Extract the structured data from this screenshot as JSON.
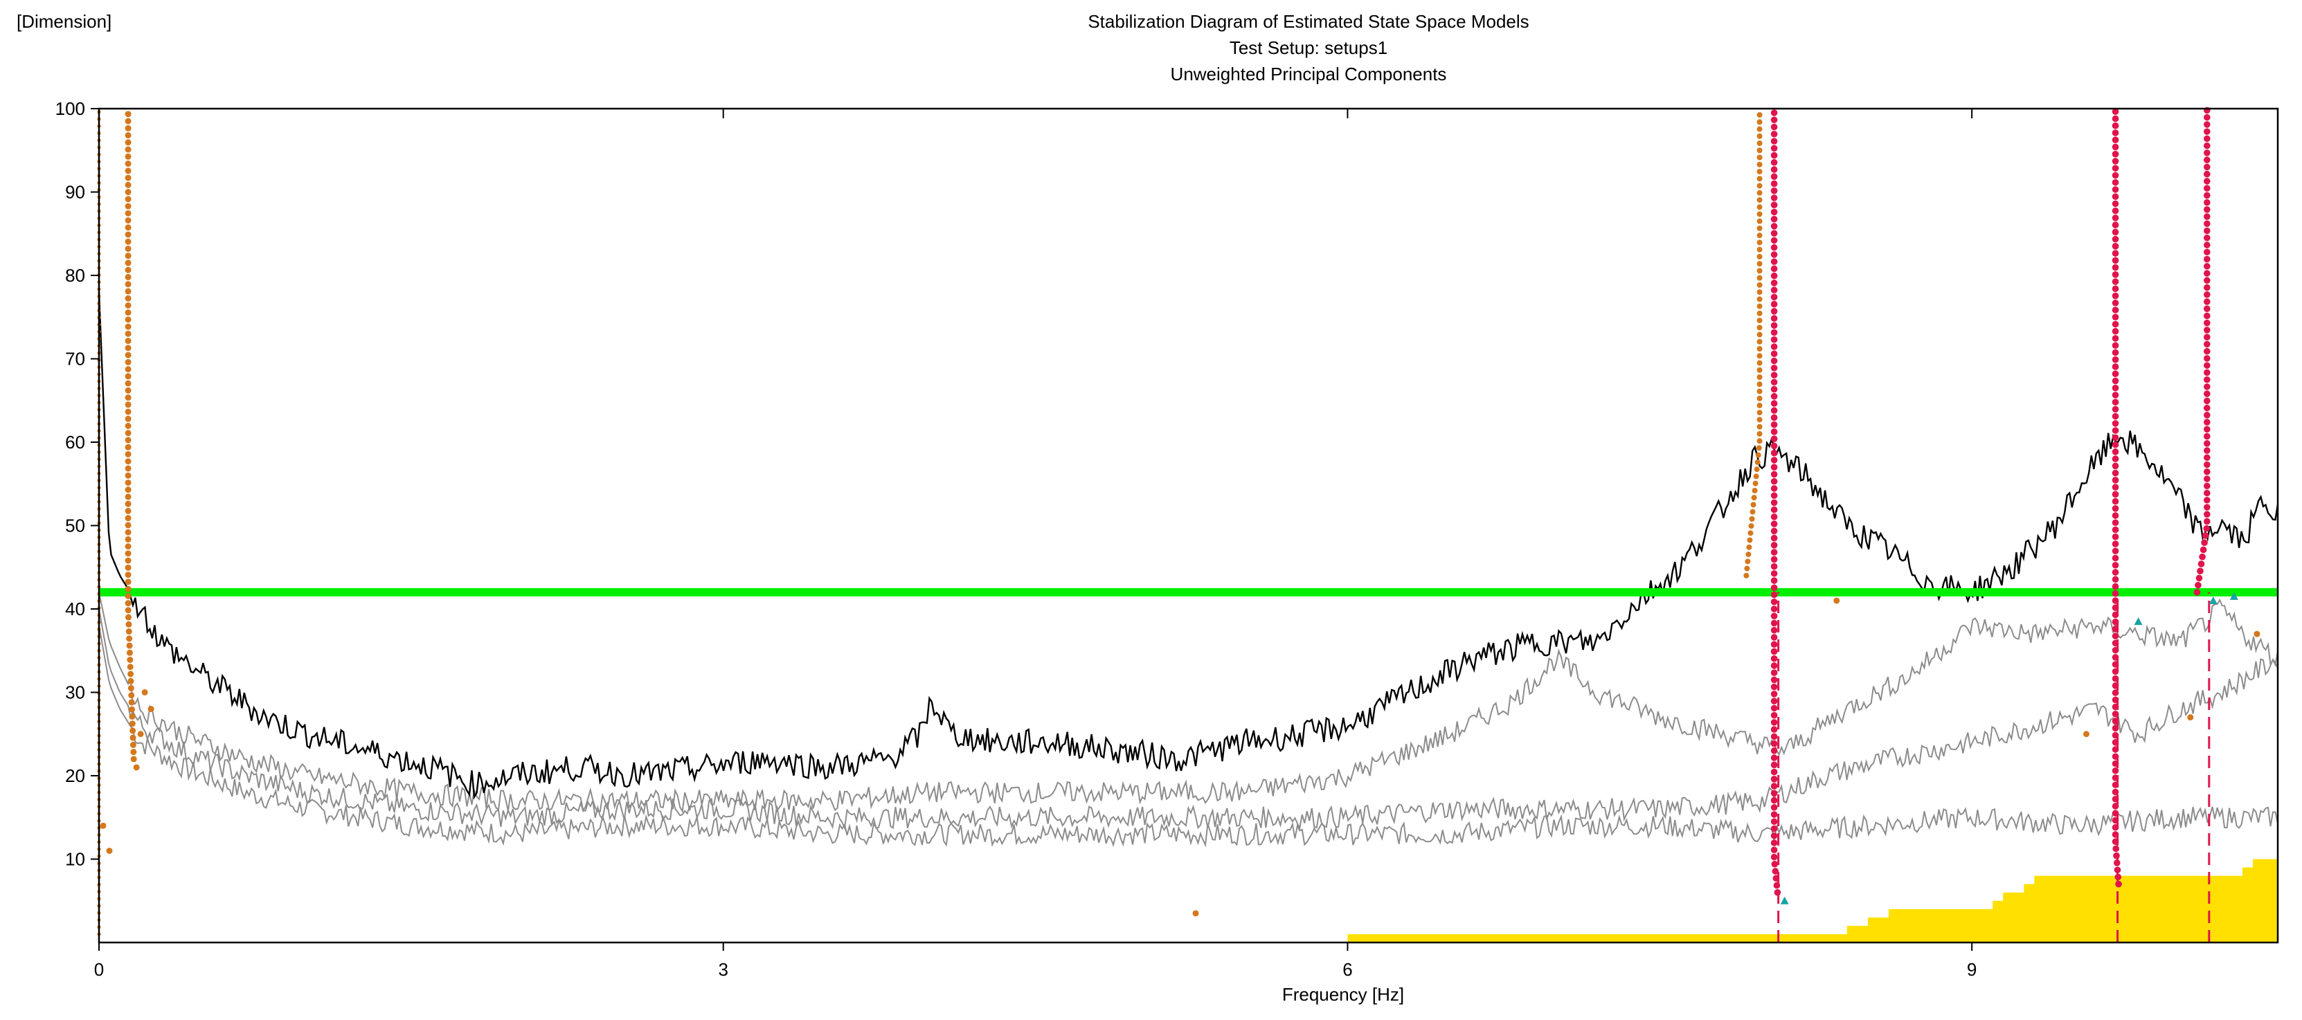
{
  "chart_data": {
    "type": "line",
    "title": "Stabilization Diagram of Estimated State Space Models",
    "subtitle_1": "Test Setup: setups1",
    "subtitle_2": "Unweighted Principal Components",
    "ylabel": "[Dimension]",
    "xlabel": "Frequency [Hz]",
    "xlim": [
      0,
      10.47
    ],
    "ylim": [
      0,
      100
    ],
    "x_ticks": [
      "0",
      "3",
      "6",
      "9"
    ],
    "y_ticks": [
      "10",
      "20",
      "30",
      "40",
      "50",
      "60",
      "70",
      "80",
      "90",
      "100"
    ],
    "grid": false,
    "threshold_line": {
      "y": 42,
      "color": "#00ee00"
    },
    "colors": {
      "spectrum_1": "#000000",
      "spectrum_others": "#8c8c8c",
      "stable_poles": "#e0144c",
      "unstable_poles": "#d4781e",
      "selected_modes": "#e0144c",
      "bar_area": "#ffe000",
      "triangle_markers": "#17a3a3"
    },
    "selected_modes_hz": [
      8.07,
      9.7,
      10.14
    ],
    "series": [
      {
        "x": [
          0,
          0.05,
          0.1,
          0.2,
          0.3,
          0.5,
          0.8,
          1.0,
          1.3,
          1.6,
          1.8,
          2.0,
          2.3,
          2.6,
          2.9,
          3.2,
          3.5,
          3.8,
          3.95,
          4.0,
          4.1,
          4.3,
          4.6,
          4.9,
          5.2,
          5.5,
          5.8,
          6.0,
          6.3,
          6.6,
          6.9,
          7.2,
          7.4,
          7.6,
          7.8,
          7.95,
          8.05,
          8.2,
          8.4,
          8.6,
          8.8,
          9.0,
          9.2,
          9.4,
          9.55,
          9.7,
          9.85,
          10.0,
          10.1,
          10.2,
          10.3,
          10.4,
          10.47
        ],
        "values": [
          78,
          47,
          44,
          40,
          36,
          32,
          27,
          25,
          23,
          21,
          19,
          20,
          21,
          20,
          21,
          22,
          21,
          22,
          25,
          29,
          25,
          24,
          24,
          23,
          22,
          24,
          25,
          26,
          30,
          34,
          36,
          36,
          41,
          45,
          52,
          58,
          59,
          56,
          50,
          47,
          43,
          42,
          45,
          50,
          56,
          61,
          58,
          53,
          49,
          50,
          48,
          53,
          51
        ]
      },
      {
        "x": [
          0,
          0.05,
          0.1,
          0.2,
          0.4,
          0.7,
          1.0,
          1.5,
          2.0,
          2.5,
          3.0,
          3.5,
          4.0,
          4.5,
          5.0,
          5.5,
          6.0,
          6.5,
          6.8,
          7.0,
          7.2,
          7.5,
          7.8,
          8.1,
          8.4,
          8.7,
          9.0,
          9.3,
          9.6,
          9.8,
          10.0,
          10.2,
          10.3,
          10.47
        ],
        "values": [
          42,
          36,
          33,
          28,
          25,
          22,
          20,
          18,
          17,
          17,
          17,
          17,
          18,
          18,
          18,
          18,
          20,
          25,
          29,
          34,
          30,
          27,
          25,
          23,
          28,
          32,
          38,
          37,
          38,
          37,
          36,
          40,
          37,
          34
        ]
      },
      {
        "x": [
          0,
          0.05,
          0.1,
          0.2,
          0.4,
          0.7,
          1.0,
          1.5,
          2.0,
          2.5,
          3.0,
          3.5,
          4.0,
          4.5,
          5.0,
          5.5,
          6.0,
          6.5,
          7.0,
          7.5,
          8.0,
          8.3,
          8.6,
          9.0,
          9.3,
          9.6,
          9.8,
          10.0,
          10.2,
          10.47
        ],
        "values": [
          40,
          33,
          30,
          26,
          23,
          20,
          18,
          16,
          15,
          16,
          16,
          15,
          15,
          15,
          15,
          15,
          15,
          16,
          16,
          16,
          17,
          20,
          22,
          24,
          26,
          28,
          25,
          28,
          30,
          34
        ]
      },
      {
        "x": [
          0,
          0.05,
          0.1,
          0.2,
          0.4,
          0.7,
          1.0,
          1.5,
          2.0,
          2.5,
          3.0,
          3.5,
          4.0,
          4.5,
          5.0,
          5.5,
          6.0,
          6.5,
          7.0,
          7.5,
          8.0,
          8.5,
          9.0,
          9.5,
          10.0,
          10.47
        ],
        "values": [
          38,
          31,
          28,
          24,
          21,
          18,
          16,
          14,
          13,
          14,
          14,
          13,
          13,
          13,
          13,
          13,
          13,
          13,
          14,
          14,
          13,
          14,
          15,
          14,
          15,
          15
        ]
      }
    ],
    "bar_area": {
      "x": [
        6.0,
        8.4,
        8.5,
        8.6,
        9.0,
        9.1,
        9.15,
        9.25,
        9.3,
        10.25,
        10.3,
        10.35,
        10.47
      ],
      "values": [
        1,
        2,
        3,
        4,
        4,
        5,
        6,
        7,
        8,
        8,
        9,
        10,
        10
      ]
    }
  }
}
